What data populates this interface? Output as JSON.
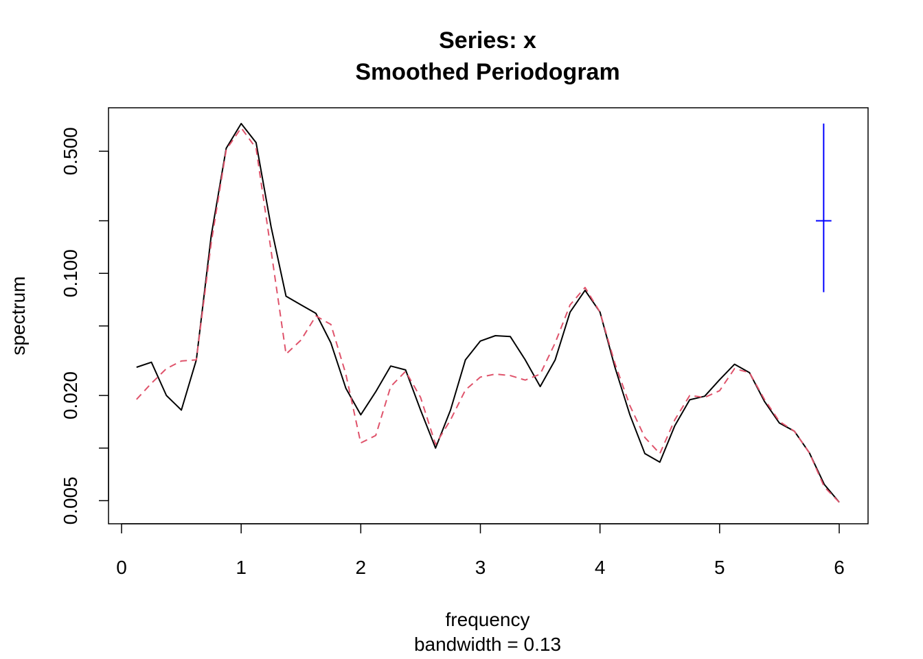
{
  "chart_data": {
    "type": "line",
    "title": "Series: x",
    "subtitle": "Smoothed Periodogram",
    "xlabel": "frequency",
    "xsublabel": "bandwidth = 0.13",
    "ylabel": "spectrum",
    "y_scale": "log",
    "xlim": [
      0,
      6
    ],
    "ylim": [
      0.0045,
      0.72
    ],
    "x_ticks": [
      0,
      1,
      2,
      3,
      4,
      5,
      6
    ],
    "x_tick_labels": [
      "0",
      "1",
      "2",
      "3",
      "4",
      "5",
      "6"
    ],
    "y_ticks": [
      0.005,
      0.01,
      0.02,
      0.05,
      0.1,
      0.2,
      0.5
    ],
    "y_tick_labels": [
      "0.005",
      "",
      "0.020",
      "",
      "0.100",
      "",
      "0.500"
    ],
    "grid": false,
    "series": [
      {
        "color": "#000000",
        "dash": "solid",
        "x": [
          0.125,
          0.25,
          0.375,
          0.5,
          0.625,
          0.75,
          0.875,
          1.0,
          1.125,
          1.25,
          1.375,
          1.5,
          1.625,
          1.75,
          1.875,
          2.0,
          2.125,
          2.25,
          2.375,
          2.5,
          2.625,
          2.75,
          2.875,
          3.0,
          3.125,
          3.25,
          3.375,
          3.5,
          3.625,
          3.75,
          3.875,
          4.0,
          4.125,
          4.25,
          4.375,
          4.5,
          4.625,
          4.75,
          4.875,
          5.0,
          5.125,
          5.25,
          5.375,
          5.5,
          5.625,
          5.75,
          5.875,
          6.0
        ],
        "y": [
          0.029,
          0.031,
          0.02,
          0.0165,
          0.032,
          0.165,
          0.52,
          0.72,
          0.56,
          0.185,
          0.074,
          0.066,
          0.059,
          0.04,
          0.022,
          0.0155,
          0.021,
          0.0295,
          0.028,
          0.0165,
          0.01,
          0.0165,
          0.032,
          0.041,
          0.044,
          0.0435,
          0.032,
          0.0225,
          0.032,
          0.06,
          0.08,
          0.06,
          0.029,
          0.0155,
          0.0093,
          0.0083,
          0.0134,
          0.0189,
          0.0198,
          0.0246,
          0.0302,
          0.027,
          0.0185,
          0.0139,
          0.0125,
          0.0094,
          0.0062,
          0.0049
        ]
      },
      {
        "color": "#DF536B",
        "dash": "dashed",
        "x": [
          0.125,
          0.25,
          0.375,
          0.5,
          0.625,
          0.75,
          0.875,
          1.0,
          1.125,
          1.25,
          1.375,
          1.5,
          1.625,
          1.75,
          1.875,
          2.0,
          2.125,
          2.25,
          2.375,
          2.5,
          2.625,
          2.75,
          2.875,
          3.0,
          3.125,
          3.25,
          3.375,
          3.5,
          3.625,
          3.75,
          3.875,
          4.0,
          4.125,
          4.25,
          4.375,
          4.5,
          4.625,
          4.75,
          4.875,
          5.0,
          5.125,
          5.25,
          5.375,
          5.5,
          5.625,
          5.75,
          5.875,
          6.0
        ],
        "y": [
          0.019,
          0.0235,
          0.0285,
          0.0315,
          0.032,
          0.15,
          0.51,
          0.68,
          0.52,
          0.135,
          0.0345,
          0.0415,
          0.057,
          0.051,
          0.0265,
          0.0107,
          0.0118,
          0.0225,
          0.0275,
          0.0195,
          0.0105,
          0.0145,
          0.0215,
          0.0255,
          0.0265,
          0.026,
          0.0245,
          0.0265,
          0.04,
          0.066,
          0.083,
          0.06,
          0.0305,
          0.0175,
          0.0115,
          0.0093,
          0.0145,
          0.02,
          0.0195,
          0.0213,
          0.0285,
          0.027,
          0.019,
          0.0142,
          0.0125,
          0.0094,
          0.006,
          0.0049
        ]
      }
    ],
    "ci_marker": {
      "color": "#0000FF",
      "x": 5.87,
      "y_center": 0.2,
      "y_low": 0.078,
      "y_high": 0.72,
      "half_width_freq": 0.065
    }
  }
}
